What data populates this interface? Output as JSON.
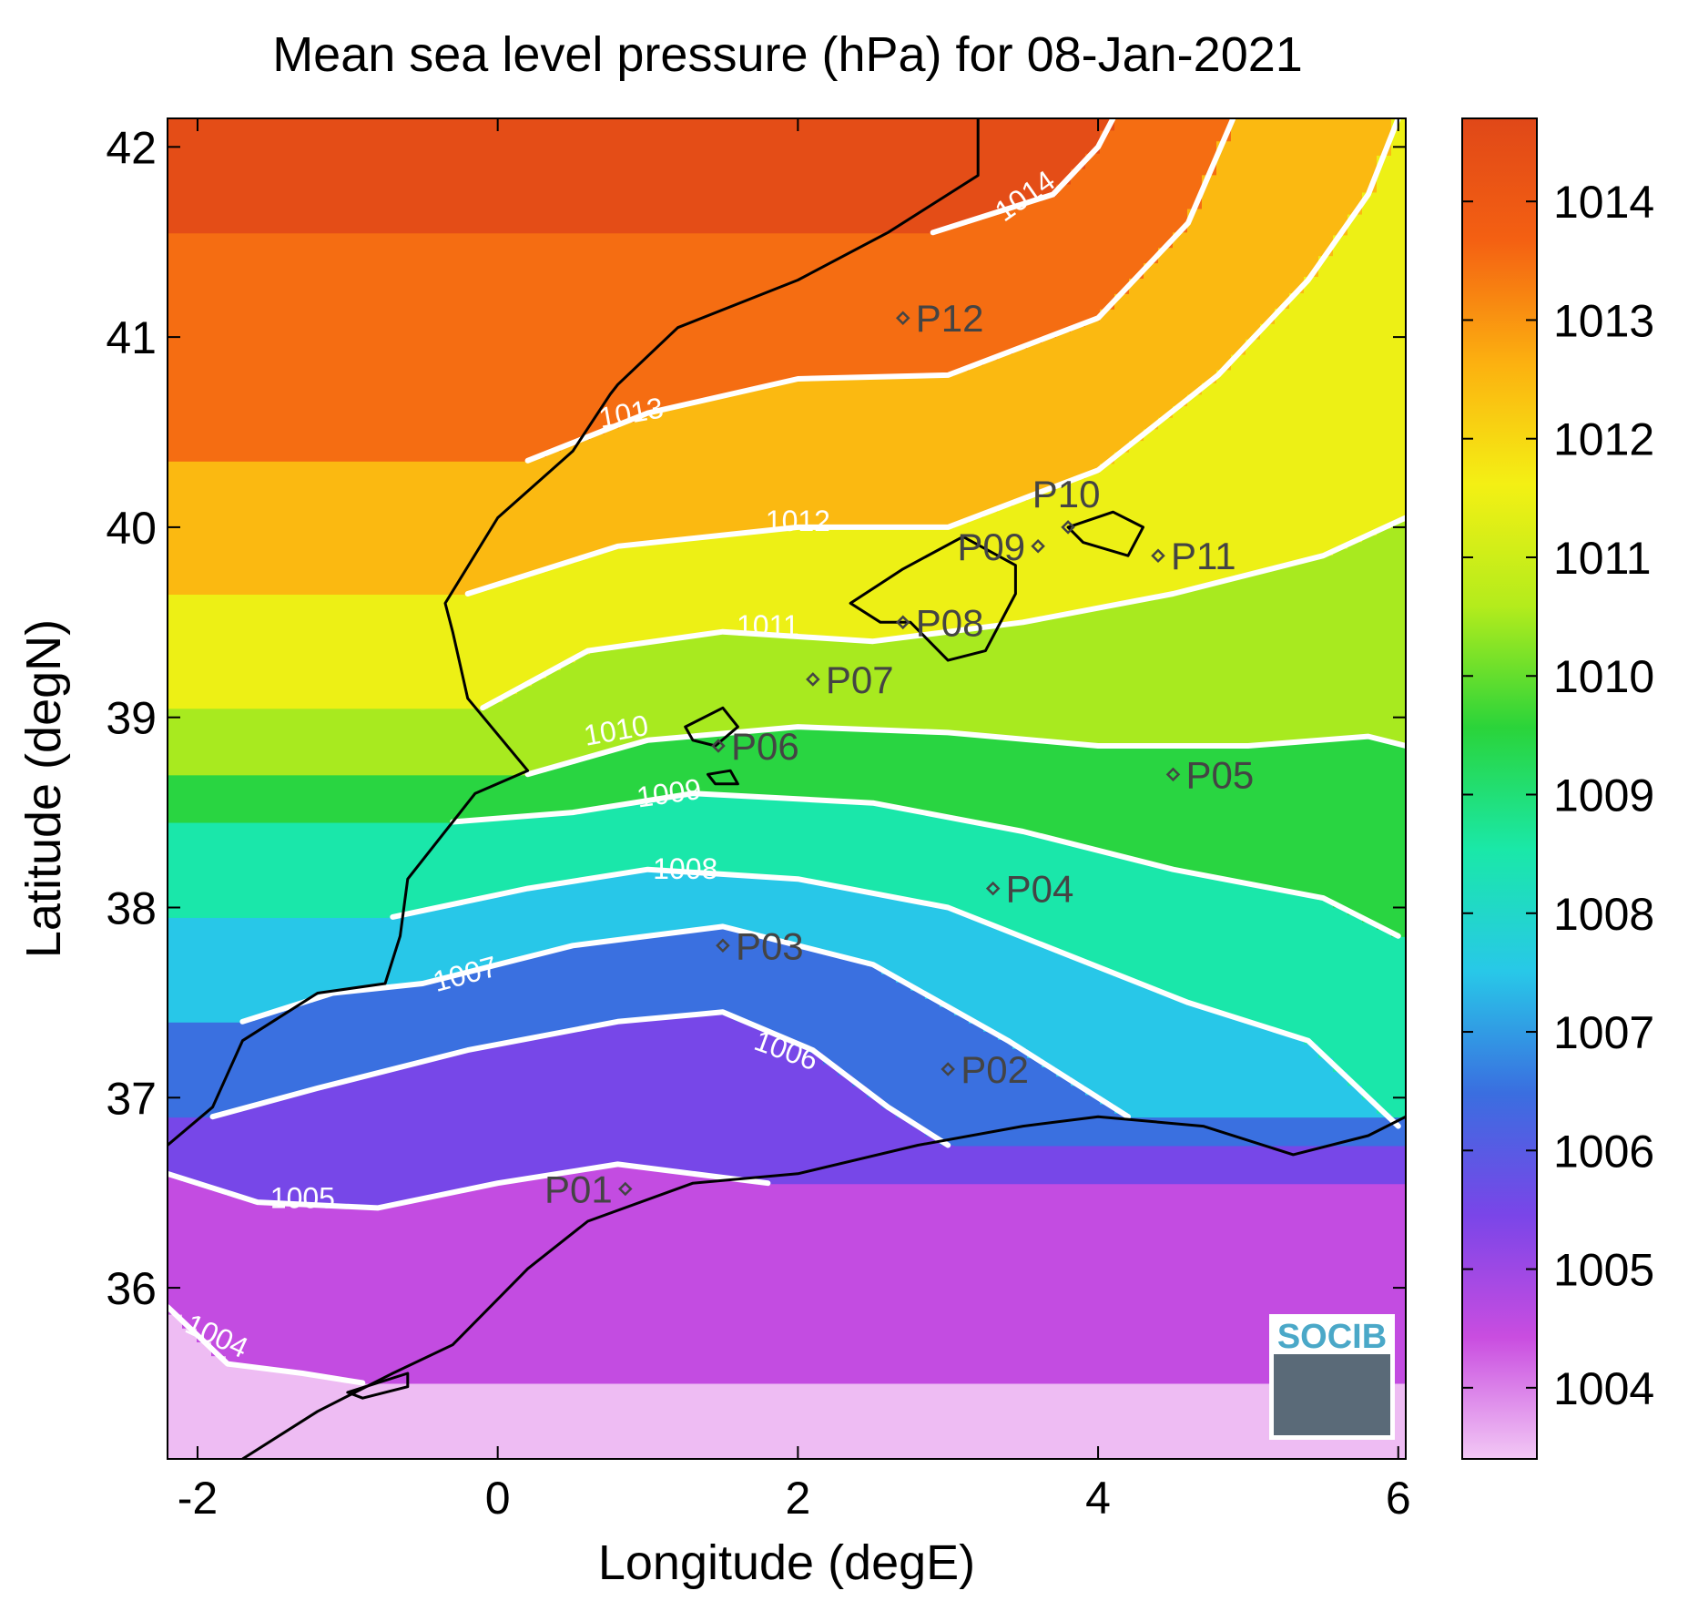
{
  "chart_data": {
    "type": "heatmap",
    "title": "Mean sea level pressure (hPa) for 08-Jan-2021",
    "xlabel": "Longitude (degE)",
    "ylabel": "Latitude (degN)",
    "xlim": [
      -2.2,
      6.05
    ],
    "ylim": [
      35.1,
      42.15
    ],
    "xticks": [
      -2,
      0,
      2,
      4,
      6
    ],
    "yticks": [
      36,
      37,
      38,
      39,
      40,
      41,
      42
    ],
    "colorbar": {
      "range": [
        1003.4,
        1014.7
      ],
      "ticks": [
        1004,
        1005,
        1006,
        1007,
        1008,
        1009,
        1010,
        1011,
        1012,
        1013,
        1014
      ],
      "stops": [
        "#f2c8f5",
        "#c94de0",
        "#7a45e8",
        "#3a6ee0",
        "#28c8e8",
        "#1ae8a8",
        "#2ad43a",
        "#b4ec1c",
        "#f4f014",
        "#fcb010",
        "#f46012",
        "#e04818"
      ]
    },
    "contours": [
      {
        "level": "1004",
        "label_lon": -1.9,
        "label_lat": 35.7,
        "label_angle": 25,
        "points": [
          [
            -2.2,
            35.9
          ],
          [
            -1.8,
            35.6
          ],
          [
            -1.3,
            35.55
          ],
          [
            -0.9,
            35.5
          ]
        ]
      },
      {
        "level": "1005",
        "label_lon": -1.3,
        "label_lat": 36.42,
        "label_angle": 0,
        "points": [
          [
            -2.2,
            36.6
          ],
          [
            -1.6,
            36.45
          ],
          [
            -0.8,
            36.42
          ],
          [
            0.0,
            36.55
          ],
          [
            0.8,
            36.65
          ],
          [
            1.3,
            36.6
          ],
          [
            1.8,
            36.55
          ]
        ]
      },
      {
        "level": "1006",
        "label_lon": 1.9,
        "label_lat": 37.2,
        "label_angle": 20,
        "points": [
          [
            -1.9,
            36.9
          ],
          [
            -1.2,
            37.05
          ],
          [
            -0.2,
            37.25
          ],
          [
            0.8,
            37.4
          ],
          [
            1.5,
            37.45
          ],
          [
            2.1,
            37.25
          ],
          [
            2.6,
            36.95
          ],
          [
            3.0,
            36.75
          ]
        ]
      },
      {
        "level": "1007",
        "label_lon": -0.2,
        "label_lat": 37.6,
        "label_angle": -15,
        "points": [
          [
            -1.7,
            37.4
          ],
          [
            -1.1,
            37.55
          ],
          [
            -0.5,
            37.6
          ],
          [
            0.5,
            37.8
          ],
          [
            1.5,
            37.9
          ],
          [
            2.5,
            37.7
          ],
          [
            3.4,
            37.3
          ],
          [
            4.2,
            36.9
          ]
        ]
      },
      {
        "level": "1008",
        "label_lon": 1.25,
        "label_lat": 38.15,
        "label_angle": 0,
        "points": [
          [
            -0.7,
            37.95
          ],
          [
            0.2,
            38.1
          ],
          [
            1.0,
            38.2
          ],
          [
            2.0,
            38.15
          ],
          [
            3.0,
            38.0
          ],
          [
            3.8,
            37.75
          ],
          [
            4.6,
            37.5
          ],
          [
            5.4,
            37.3
          ],
          [
            6.0,
            36.85
          ]
        ]
      },
      {
        "level": "1009",
        "label_lon": 1.15,
        "label_lat": 38.55,
        "label_angle": -8,
        "points": [
          [
            -0.3,
            38.45
          ],
          [
            0.5,
            38.5
          ],
          [
            1.3,
            38.6
          ],
          [
            2.5,
            38.55
          ],
          [
            3.5,
            38.4
          ],
          [
            4.5,
            38.2
          ],
          [
            5.5,
            38.05
          ],
          [
            6.0,
            37.85
          ]
        ]
      },
      {
        "level": "1010",
        "label_lon": 0.8,
        "label_lat": 38.88,
        "label_angle": -10,
        "points": [
          [
            0.2,
            38.7
          ],
          [
            1.0,
            38.88
          ],
          [
            2.0,
            38.95
          ],
          [
            3.0,
            38.92
          ],
          [
            4.0,
            38.85
          ],
          [
            5.0,
            38.85
          ],
          [
            5.8,
            38.9
          ],
          [
            6.05,
            38.85
          ]
        ]
      },
      {
        "level": "1011",
        "label_lon": 1.8,
        "label_lat": 39.43,
        "label_angle": 0,
        "points": [
          [
            -0.1,
            39.05
          ],
          [
            0.6,
            39.35
          ],
          [
            1.5,
            39.45
          ],
          [
            2.5,
            39.4
          ],
          [
            3.5,
            39.5
          ],
          [
            4.5,
            39.65
          ],
          [
            5.5,
            39.85
          ],
          [
            6.05,
            40.05
          ]
        ]
      },
      {
        "level": "1012",
        "label_lon": 2.0,
        "label_lat": 39.98,
        "label_angle": 0,
        "points": [
          [
            -0.2,
            39.65
          ],
          [
            0.8,
            39.9
          ],
          [
            2.0,
            40.0
          ],
          [
            3.0,
            40.0
          ],
          [
            4.0,
            40.3
          ],
          [
            4.8,
            40.8
          ],
          [
            5.4,
            41.3
          ],
          [
            5.8,
            41.75
          ],
          [
            6.0,
            42.15
          ]
        ]
      },
      {
        "level": "1013",
        "label_lon": 0.9,
        "label_lat": 40.55,
        "label_angle": -10,
        "points": [
          [
            0.2,
            40.35
          ],
          [
            1.0,
            40.6
          ],
          [
            2.0,
            40.78
          ],
          [
            3.0,
            40.8
          ],
          [
            4.0,
            41.1
          ],
          [
            4.6,
            41.6
          ],
          [
            4.9,
            42.15
          ]
        ]
      },
      {
        "level": "1014",
        "label_lon": 3.55,
        "label_lat": 41.7,
        "label_angle": -35,
        "points": [
          [
            2.9,
            41.55
          ],
          [
            3.3,
            41.65
          ],
          [
            3.7,
            41.75
          ],
          [
            4.0,
            42.0
          ],
          [
            4.1,
            42.15
          ]
        ]
      }
    ],
    "stations": [
      {
        "name": "P01",
        "lon": 0.85,
        "lat": 36.52,
        "label_side": "left"
      },
      {
        "name": "P02",
        "lon": 3.0,
        "lat": 37.15,
        "label_side": "right"
      },
      {
        "name": "P03",
        "lon": 1.5,
        "lat": 37.8,
        "label_side": "right"
      },
      {
        "name": "P04",
        "lon": 3.3,
        "lat": 38.1,
        "label_side": "right"
      },
      {
        "name": "P05",
        "lon": 4.5,
        "lat": 38.7,
        "label_side": "right"
      },
      {
        "name": "P06",
        "lon": 1.47,
        "lat": 38.85,
        "label_side": "right"
      },
      {
        "name": "P07",
        "lon": 2.1,
        "lat": 39.2,
        "label_side": "right"
      },
      {
        "name": "P08",
        "lon": 2.7,
        "lat": 39.5,
        "label_side": "right"
      },
      {
        "name": "P09",
        "lon": 3.6,
        "lat": 39.9,
        "label_side": "left"
      },
      {
        "name": "P10",
        "lon": 3.8,
        "lat": 40.0,
        "label_side": "above"
      },
      {
        "name": "P11",
        "lon": 4.4,
        "lat": 39.85,
        "label_side": "right"
      },
      {
        "name": "P12",
        "lon": 2.7,
        "lat": 41.1,
        "label_side": "right"
      }
    ],
    "coastlines": [
      {
        "name": "iberia",
        "points": [
          [
            -2.2,
            36.75
          ],
          [
            -1.9,
            36.95
          ],
          [
            -1.7,
            37.3
          ],
          [
            -1.2,
            37.55
          ],
          [
            -0.75,
            37.6
          ],
          [
            -0.65,
            37.85
          ],
          [
            -0.6,
            38.15
          ],
          [
            -0.4,
            38.35
          ],
          [
            -0.15,
            38.6
          ],
          [
            0.2,
            38.72
          ],
          [
            -0.2,
            39.1
          ],
          [
            -0.3,
            39.45
          ],
          [
            -0.35,
            39.6
          ],
          [
            0.0,
            40.05
          ],
          [
            0.5,
            40.4
          ],
          [
            0.75,
            40.7
          ],
          [
            0.8,
            40.75
          ],
          [
            1.2,
            41.05
          ],
          [
            2.0,
            41.3
          ],
          [
            2.6,
            41.55
          ],
          [
            3.2,
            41.85
          ],
          [
            3.2,
            42.15
          ]
        ]
      },
      {
        "name": "africa",
        "points": [
          [
            -1.7,
            35.1
          ],
          [
            -1.2,
            35.35
          ],
          [
            -0.7,
            35.55
          ],
          [
            -0.3,
            35.7
          ],
          [
            0.2,
            36.1
          ],
          [
            0.6,
            36.35
          ],
          [
            1.3,
            36.55
          ],
          [
            2.0,
            36.6
          ],
          [
            2.8,
            36.75
          ],
          [
            3.5,
            36.85
          ],
          [
            4.0,
            36.9
          ],
          [
            4.7,
            36.85
          ],
          [
            5.3,
            36.7
          ],
          [
            5.8,
            36.8
          ],
          [
            6.05,
            36.9
          ]
        ]
      },
      {
        "name": "mallorca",
        "closed": true,
        "points": [
          [
            2.35,
            39.6
          ],
          [
            2.7,
            39.78
          ],
          [
            3.1,
            39.95
          ],
          [
            3.45,
            39.8
          ],
          [
            3.45,
            39.65
          ],
          [
            3.25,
            39.35
          ],
          [
            3.0,
            39.3
          ],
          [
            2.75,
            39.5
          ],
          [
            2.55,
            39.5
          ]
        ]
      },
      {
        "name": "menorca",
        "closed": true,
        "points": [
          [
            3.8,
            40.0
          ],
          [
            4.1,
            40.08
          ],
          [
            4.3,
            40.0
          ],
          [
            4.2,
            39.85
          ],
          [
            3.9,
            39.92
          ]
        ]
      },
      {
        "name": "ibiza",
        "closed": true,
        "points": [
          [
            1.25,
            38.95
          ],
          [
            1.5,
            39.05
          ],
          [
            1.6,
            38.95
          ],
          [
            1.45,
            38.85
          ],
          [
            1.3,
            38.88
          ]
        ]
      },
      {
        "name": "formentera",
        "closed": true,
        "points": [
          [
            1.4,
            38.7
          ],
          [
            1.55,
            38.72
          ],
          [
            1.6,
            38.65
          ],
          [
            1.45,
            38.65
          ]
        ]
      },
      {
        "name": "alboran",
        "closed": true,
        "points": [
          [
            -1.0,
            35.45
          ],
          [
            -0.6,
            35.55
          ],
          [
            -0.6,
            35.48
          ],
          [
            -0.9,
            35.42
          ]
        ]
      }
    ]
  },
  "logo": {
    "text": "SOCIB"
  }
}
